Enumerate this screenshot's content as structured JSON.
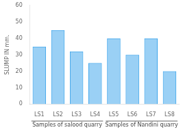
{
  "chart_data": {
    "type": "bar",
    "categories": [
      "LS1",
      "LS2",
      "LS3",
      "LS4",
      "LS5",
      "LS6",
      "LS7",
      "LS8"
    ],
    "values": [
      35,
      45,
      32,
      25,
      40,
      30,
      40,
      20
    ],
    "ylabel": "SLUMP IN mm.",
    "ylim": [
      0,
      60
    ],
    "yticks": [
      0,
      10,
      20,
      30,
      40,
      50,
      60
    ],
    "grid": false,
    "annotations": [
      {
        "text": "Samples of salood quarry",
        "categories": [
          "LS1",
          "LS2",
          "LS3",
          "LS4"
        ]
      },
      {
        "text": "Samples of Nandini quarry",
        "categories": [
          "LS5",
          "LS6",
          "LS7",
          "LS8"
        ]
      }
    ]
  }
}
